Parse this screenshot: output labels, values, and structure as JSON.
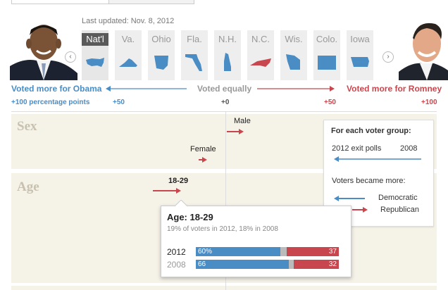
{
  "header": {
    "updated": "Last updated: Nov. 8, 2012"
  },
  "tabs": [
    {
      "label": "Nat'l",
      "active": true
    },
    {
      "label": "Va.",
      "active": false
    },
    {
      "label": "Ohio",
      "active": false
    },
    {
      "label": "Fla.",
      "active": false
    },
    {
      "label": "N.H.",
      "active": false
    },
    {
      "label": "N.C.",
      "active": false
    },
    {
      "label": "Wis.",
      "active": false
    },
    {
      "label": "Colo.",
      "active": false
    },
    {
      "label": "Iowa",
      "active": false
    }
  ],
  "nav": {
    "prev": "‹",
    "next": "›"
  },
  "scale": {
    "left": "Voted more for Obama",
    "center": "Voted equally",
    "right": "Voted more for Romney",
    "ticks": [
      "+100 percentage points",
      "+50",
      "+0",
      "+50",
      "+100"
    ]
  },
  "groups": {
    "sex": {
      "title": "Sex",
      "male": "Male",
      "female": "Female"
    },
    "age": {
      "title": "Age",
      "label": "18-29"
    }
  },
  "legend": {
    "heading": "For each voter group:",
    "exit": "2012 exit polls",
    "year": "2008",
    "became": "Voters became more:",
    "dem": "Democratic",
    "rep": "Republican"
  },
  "tooltip": {
    "title": "Age: 18-29",
    "sub": "19% of voters in 2012, 18% in 2008",
    "rows": [
      {
        "year": "2012",
        "obama": "60%",
        "romney": "37"
      },
      {
        "year": "2008",
        "obama": "66",
        "romney": "32"
      }
    ]
  },
  "colors": {
    "obama": "#4a8cc4",
    "romney": "#c8474e",
    "band": "#f5f2e8"
  }
}
